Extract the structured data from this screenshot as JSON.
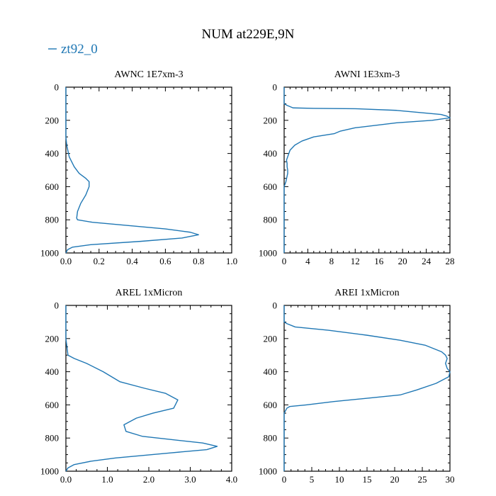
{
  "figure": {
    "title": "NUM at229E,9N",
    "legend": [
      "zt92_0"
    ],
    "line_color": "#1f77b4"
  },
  "chart_data": [
    {
      "type": "line",
      "title": "AWNC  1E7xm-3",
      "xlim": [
        0,
        1.0
      ],
      "ylim": [
        1000,
        0
      ],
      "xticks": [
        "0.0",
        "0.2",
        "0.4",
        "0.6",
        "0.8",
        "1.0"
      ],
      "xtick_values": [
        0,
        0.2,
        0.4,
        0.6,
        0.8,
        1.0
      ],
      "yticks": [
        "0",
        "200",
        "400",
        "600",
        "800",
        "1000"
      ],
      "ytick_values": [
        0,
        200,
        400,
        600,
        800,
        1000
      ],
      "series": [
        {
          "name": "zt92_0",
          "x": [
            0,
            0,
            0,
            0.005,
            0.02,
            0.05,
            0.08,
            0.12,
            0.14,
            0.14,
            0.12,
            0.09,
            0.07,
            0.065,
            0.07,
            0.16,
            0.6,
            0.75,
            0.8,
            0.7,
            0.45,
            0.15,
            0.04,
            0.01,
            0
          ],
          "y": [
            0,
            200,
            300,
            350,
            420,
            480,
            520,
            550,
            570,
            600,
            650,
            700,
            750,
            790,
            800,
            815,
            855,
            875,
            890,
            910,
            930,
            950,
            965,
            980,
            1000
          ]
        }
      ]
    },
    {
      "type": "line",
      "title": "AWNI  1E3xm-3",
      "xlim": [
        0,
        28
      ],
      "ylim": [
        1000,
        0
      ],
      "xticks": [
        "0",
        "4",
        "8",
        "12",
        "16",
        "20",
        "24",
        "28"
      ],
      "xtick_values": [
        0,
        4,
        8,
        12,
        16,
        20,
        24,
        28
      ],
      "yticks": [
        "0",
        "200",
        "400",
        "600",
        "800",
        "1000"
      ],
      "ytick_values": [
        0,
        200,
        400,
        600,
        800,
        1000
      ],
      "series": [
        {
          "name": "zt92_0",
          "x": [
            0,
            0,
            0.5,
            1.5,
            5,
            12,
            19,
            26.5,
            27.5,
            28,
            27,
            25,
            19,
            12,
            9.5,
            8.5,
            5,
            3,
            1.8,
            1,
            0.6,
            0.4,
            0.5,
            0.5,
            0.6,
            0.6,
            0.3,
            0,
            0
          ],
          "y": [
            0,
            100,
            110,
            125,
            128,
            130,
            140,
            165,
            175,
            185,
            190,
            200,
            215,
            245,
            265,
            280,
            300,
            325,
            350,
            380,
            420,
            440,
            460,
            480,
            500,
            520,
            570,
            600,
            1000
          ]
        }
      ]
    },
    {
      "type": "line",
      "title": "AREL  1xMicron",
      "xlim": [
        0,
        4.0
      ],
      "ylim": [
        1000,
        0
      ],
      "xticks": [
        "0.0",
        "1.0",
        "2.0",
        "3.0",
        "4.0"
      ],
      "xtick_values": [
        0,
        1.0,
        2.0,
        3.0,
        4.0
      ],
      "yticks": [
        "0",
        "200",
        "400",
        "600",
        "800",
        "1000"
      ],
      "ytick_values": [
        0,
        200,
        400,
        600,
        800,
        1000
      ],
      "series": [
        {
          "name": "zt92_0",
          "x": [
            0,
            0,
            0.05,
            0.2,
            0.5,
            0.9,
            1.3,
            1.9,
            2.4,
            2.7,
            2.6,
            2.1,
            1.7,
            1.4,
            1.45,
            1.85,
            3.3,
            3.65,
            3.4,
            2.5,
            1.2,
            0.6,
            0.2,
            0.05,
            0
          ],
          "y": [
            0,
            200,
            300,
            320,
            350,
            400,
            460,
            500,
            530,
            570,
            620,
            650,
            680,
            720,
            760,
            790,
            830,
            850,
            870,
            890,
            920,
            940,
            960,
            980,
            1000
          ]
        }
      ]
    },
    {
      "type": "line",
      "title": "AREI  1xMicron",
      "xlim": [
        0,
        30
      ],
      "ylim": [
        1000,
        0
      ],
      "xticks": [
        "0",
        "5",
        "10",
        "15",
        "20",
        "25",
        "30"
      ],
      "xtick_values": [
        0,
        5,
        10,
        15,
        20,
        25,
        30
      ],
      "yticks": [
        "0",
        "200",
        "400",
        "600",
        "800",
        "1000"
      ],
      "ytick_values": [
        0,
        200,
        400,
        600,
        800,
        1000
      ],
      "series": [
        {
          "name": "zt92_0",
          "x": [
            0,
            0,
            0.5,
            2,
            8,
            15,
            21,
            25.5,
            28.5,
            29.2,
            29.5,
            29.2,
            29.5,
            30,
            29.8,
            27.5,
            24,
            21,
            15,
            9,
            4,
            1,
            0.5,
            0,
            0
          ],
          "y": [
            0,
            100,
            110,
            130,
            150,
            180,
            210,
            240,
            280,
            300,
            320,
            350,
            380,
            400,
            430,
            470,
            510,
            540,
            560,
            580,
            600,
            610,
            620,
            650,
            1000
          ]
        }
      ]
    }
  ]
}
